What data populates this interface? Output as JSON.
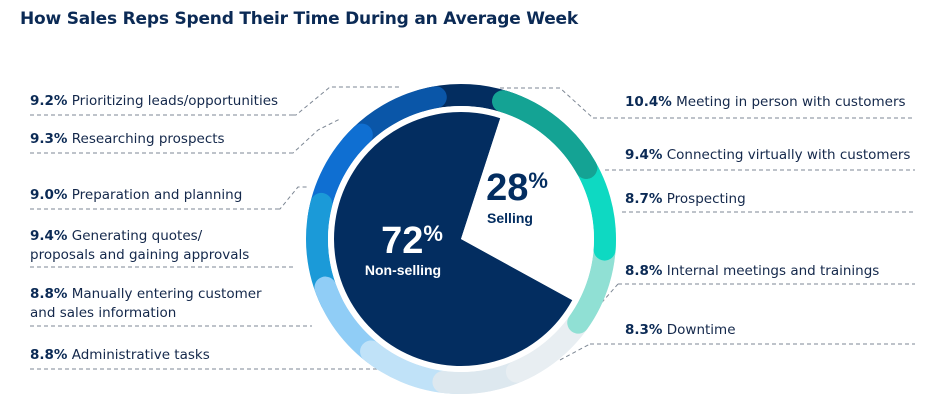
{
  "title": "How Sales Reps Spend Their Time During an Average Week",
  "chart_data": {
    "type": "pie",
    "title": "How Sales Reps Spend Their Time During an Average Week",
    "summary": [
      {
        "name": "Selling",
        "value": 28,
        "label": "28%",
        "color": "#ffffff",
        "text_color": "#032d60"
      },
      {
        "name": "Non-selling",
        "value": 72,
        "label": "72%",
        "color": "#032d60",
        "text_color": "#ffffff"
      }
    ],
    "categories": [
      {
        "label": "Meeting in person with customers",
        "value": 10.4,
        "pct": "10.4%",
        "group": "Selling",
        "color": "#14a394"
      },
      {
        "label": "Connecting virtually with customers",
        "value": 9.4,
        "pct": "9.4%",
        "group": "Selling",
        "color": "#0ed9c2"
      },
      {
        "label": "Prospecting",
        "value": 8.7,
        "pct": "8.7%",
        "group": "Selling",
        "color": "#90e0d4"
      },
      {
        "label": "Internal meetings and trainings",
        "value": 8.8,
        "pct": "8.8%",
        "group": "Non-selling",
        "color": "#e8eef2"
      },
      {
        "label": "Downtime",
        "value": 8.3,
        "pct": "8.3%",
        "group": "Non-selling",
        "color": "#dde8ef"
      },
      {
        "label": "Administrative tasks",
        "value": 8.8,
        "pct": "8.8%",
        "group": "Non-selling",
        "color": "#c0e2f8"
      },
      {
        "label": "Manually entering customer and sales information",
        "value": 8.8,
        "pct": "8.8%",
        "group": "Non-selling",
        "color": "#90cdf6",
        "lines": [
          "Manually entering customer",
          "and sales information"
        ]
      },
      {
        "label": "Generating quotes/ proposals and gaining approvals",
        "value": 9.4,
        "pct": "9.4%",
        "group": "Non-selling",
        "color": "#1b9ad8",
        "lines": [
          "Generating quotes/",
          "proposals and gaining approvals"
        ]
      },
      {
        "label": "Preparation and planning",
        "value": 9.0,
        "pct": "9.0%",
        "group": "Non-selling",
        "color": "#0f6fd2"
      },
      {
        "label": "Researching prospects",
        "value": 9.3,
        "pct": "9.3%",
        "group": "Non-selling",
        "color": "#0a56a8"
      },
      {
        "label": "Prioritizing leads/opportunities",
        "value": 9.2,
        "pct": "9.2%",
        "group": "Non-selling",
        "color": "#032d60"
      }
    ],
    "legend": "labels-around"
  }
}
